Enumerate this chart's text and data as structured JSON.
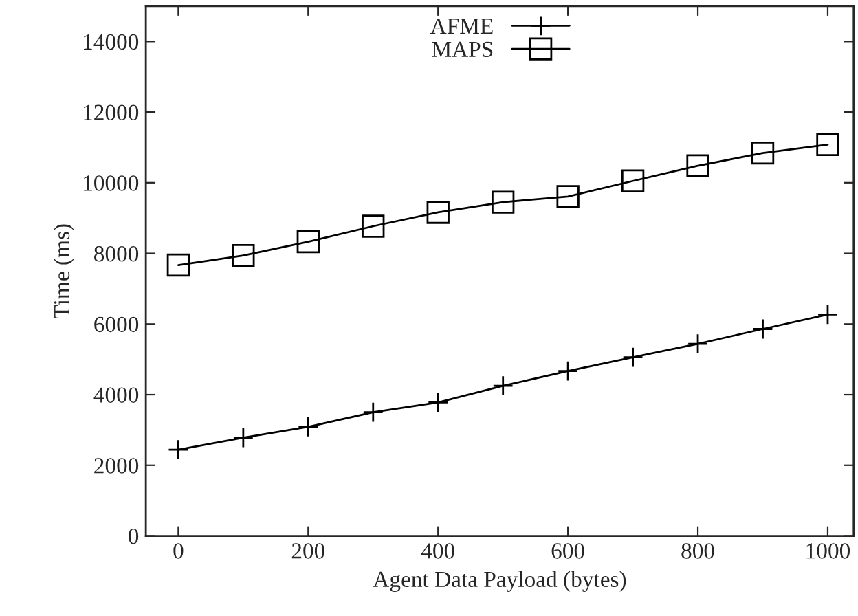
{
  "chart_data": {
    "type": "line",
    "xlabel": "Agent Data Payload (bytes)",
    "ylabel": "Time (ms)",
    "x": [
      0,
      100,
      200,
      300,
      400,
      500,
      600,
      700,
      800,
      900,
      1000
    ],
    "series": [
      {
        "name": "AFME",
        "color": "#000000",
        "marker": "cross",
        "values": [
          2440,
          2780,
          3090,
          3500,
          3780,
          4250,
          4670,
          5060,
          5440,
          5860,
          6270
        ]
      },
      {
        "name": "MAPS",
        "color": "#000000",
        "marker": "square",
        "values": [
          7670,
          7940,
          8330,
          8770,
          9160,
          9450,
          9610,
          10050,
          10480,
          10840,
          11080
        ]
      }
    ],
    "xlim": [
      -50,
      1040
    ],
    "ylim": [
      0,
      15000
    ],
    "xticks": [
      0,
      200,
      400,
      600,
      800,
      1000
    ],
    "yticks": [
      0,
      2000,
      4000,
      6000,
      8000,
      10000,
      12000,
      14000
    ],
    "grid": false,
    "legend": "top",
    "line_style": "solid"
  }
}
